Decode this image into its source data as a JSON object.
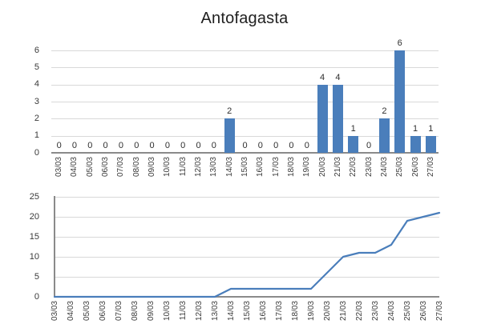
{
  "title": "Antofagasta",
  "colors": {
    "series": "#4a7ebb",
    "gridline": "#d9d9d9",
    "axis": "#8a8a8a",
    "tick_label": "#3a3a3a",
    "data_label": "#2e2e2e",
    "title": "#1f1f1f"
  },
  "chart_data": [
    {
      "type": "bar",
      "title": "Antofagasta",
      "categories": [
        "03/03",
        "04/03",
        "05/03",
        "06/03",
        "07/03",
        "08/03",
        "09/03",
        "10/03",
        "11/03",
        "12/03",
        "13/03",
        "14/03",
        "15/03",
        "16/03",
        "17/03",
        "18/03",
        "19/03",
        "20/03",
        "21/03",
        "22/03",
        "23/03",
        "24/03",
        "25/03",
        "26/03",
        "27/03"
      ],
      "values": [
        0,
        0,
        0,
        0,
        0,
        0,
        0,
        0,
        0,
        0,
        0,
        2,
        0,
        0,
        0,
        0,
        0,
        4,
        4,
        1,
        0,
        2,
        6,
        1,
        1
      ],
      "xlabel": "",
      "ylabel": "",
      "ylim": [
        0,
        6
      ],
      "yticks": [
        0,
        1,
        2,
        3,
        4,
        5,
        6
      ],
      "data_labels": true,
      "grid": true,
      "legend": "none",
      "x_label_rotation": 90,
      "bar_color": "#4a7ebb"
    },
    {
      "type": "line",
      "title": "",
      "categories": [
        "03/03",
        "04/03",
        "05/03",
        "06/03",
        "07/03",
        "08/03",
        "09/03",
        "10/03",
        "11/03",
        "12/03",
        "13/03",
        "14/03",
        "15/03",
        "16/03",
        "17/03",
        "18/03",
        "19/03",
        "20/03",
        "21/03",
        "22/03",
        "23/03",
        "24/03",
        "25/03",
        "26/03",
        "27/03"
      ],
      "values": [
        0,
        0,
        0,
        0,
        0,
        0,
        0,
        0,
        0,
        0,
        0,
        2,
        2,
        2,
        2,
        2,
        2,
        6,
        10,
        11,
        11,
        13,
        19,
        20,
        21
      ],
      "xlabel": "",
      "ylabel": "",
      "ylim": [
        0,
        25
      ],
      "yticks": [
        0,
        5,
        10,
        15,
        20,
        25
      ],
      "data_labels": false,
      "grid": true,
      "legend": "none",
      "x_label_rotation": 90,
      "line_color": "#4a7ebb",
      "markers": false
    }
  ]
}
